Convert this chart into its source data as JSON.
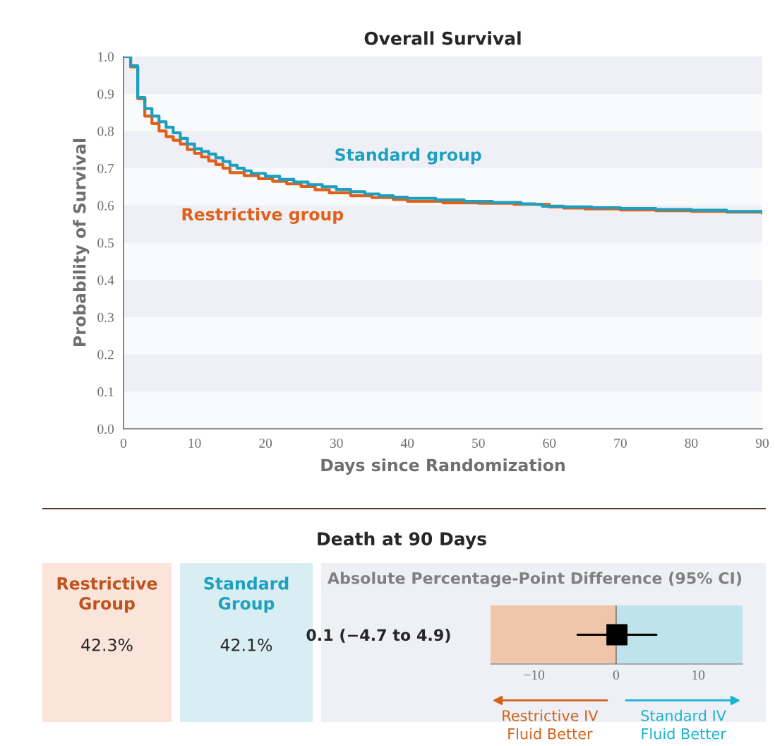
{
  "chart_data": [
    {
      "type": "step",
      "title": "Overall Survival",
      "xlabel": "Days since Randomization",
      "ylabel": "Probability of Survival",
      "xlim": [
        0,
        90
      ],
      "ylim": [
        0,
        1.0
      ],
      "xticks": [
        0,
        10,
        20,
        30,
        40,
        50,
        60,
        70,
        80,
        90
      ],
      "yticks": [
        {
          "value": 0,
          "label": "0.0"
        },
        0.1,
        0.2,
        0.3,
        0.4,
        0.5,
        0.6,
        0.7,
        0.8,
        0.9,
        {
          "value": 1,
          "label": "1.0"
        }
      ],
      "grid": false,
      "legend": false,
      "marker": "none",
      "line_style": "solid",
      "bands": [
        {
          "axis": "y",
          "from": 0.1,
          "to": 0.2,
          "color": "#eef0f5"
        },
        {
          "axis": "y",
          "from": 0.3,
          "to": 0.4,
          "color": "#eef0f5"
        },
        {
          "axis": "y",
          "from": 0.5,
          "to": 0.6,
          "color": "#eef0f5"
        },
        {
          "axis": "y",
          "from": 0.7,
          "to": 0.8,
          "color": "#eef0f5"
        },
        {
          "axis": "y",
          "from": 0.9,
          "to": 1.0,
          "color": "#eef0f5"
        }
      ],
      "series": [
        {
          "name": "Restrictive group",
          "color": "#e0601a",
          "x": [
            0,
            1,
            2,
            3,
            4,
            5,
            6,
            7,
            8,
            9,
            10,
            11,
            12,
            13,
            14,
            15,
            17,
            19,
            21,
            23,
            25,
            27,
            29,
            32,
            35,
            38,
            40,
            45,
            50,
            55,
            60,
            62,
            65,
            70,
            75,
            80,
            85,
            90
          ],
          "values": [
            1.0,
            0.972,
            0.887,
            0.84,
            0.82,
            0.8,
            0.785,
            0.775,
            0.765,
            0.75,
            0.74,
            0.73,
            0.72,
            0.71,
            0.7,
            0.688,
            0.68,
            0.672,
            0.665,
            0.658,
            0.651,
            0.642,
            0.634,
            0.626,
            0.621,
            0.616,
            0.611,
            0.607,
            0.606,
            0.603,
            0.596,
            0.593,
            0.591,
            0.588,
            0.586,
            0.584,
            0.582,
            0.579
          ]
        },
        {
          "name": "Standard group",
          "color": "#1f9fc0",
          "x": [
            0,
            1,
            2,
            3,
            4,
            5,
            6,
            7,
            8,
            9,
            10,
            11,
            12,
            13,
            14,
            15,
            16,
            17,
            18,
            20,
            22,
            24,
            26,
            28,
            30,
            32,
            34,
            36,
            38,
            40,
            44,
            48,
            52,
            56,
            58,
            59,
            62,
            66,
            70,
            75,
            80,
            85,
            90
          ],
          "values": [
            1.0,
            0.975,
            0.89,
            0.86,
            0.84,
            0.825,
            0.81,
            0.795,
            0.78,
            0.765,
            0.752,
            0.745,
            0.738,
            0.728,
            0.718,
            0.708,
            0.7,
            0.693,
            0.686,
            0.678,
            0.67,
            0.663,
            0.656,
            0.65,
            0.643,
            0.637,
            0.631,
            0.626,
            0.622,
            0.619,
            0.615,
            0.611,
            0.608,
            0.604,
            0.603,
            0.598,
            0.596,
            0.594,
            0.592,
            0.589,
            0.587,
            0.584,
            0.582
          ]
        }
      ]
    },
    {
      "type": "other",
      "title": "Death at 90 Days",
      "categories": [
        "Restrictive\nGroup",
        "Standard\nGroup"
      ],
      "value_labels": [
        "42.3%",
        "42.1%"
      ],
      "colors": [
        "#fbe5da",
        "#d8eef3"
      ]
    },
    {
      "type": "scatter",
      "orientation": "horizontal",
      "title": "Absolute Percentage-Point Difference (95% CI)",
      "categories": [
        "0.1 (−4.7 to 4.9)"
      ],
      "values": [
        0.1
      ],
      "errors": [
        [
          -4.7,
          4.9
        ]
      ],
      "marker": "square",
      "xlim": [
        -15.3,
        15.4
      ],
      "xticks": [
        {
          "value": -10,
          "label": "−10"
        },
        0,
        10
      ],
      "bands": [
        {
          "axis": "x",
          "from": -15.3,
          "to": 0,
          "color": "#f0c6aa"
        },
        {
          "axis": "x",
          "from": 0,
          "to": 15.4,
          "color": "#bfe3ea"
        }
      ],
      "ref_lines": [
        {
          "axis": "x",
          "value": 0,
          "color": "#8a8a8a"
        }
      ],
      "annotations": [
        "Restrictive IV\nFluid Better",
        "Standard IV\nFluid Better"
      ]
    }
  ]
}
